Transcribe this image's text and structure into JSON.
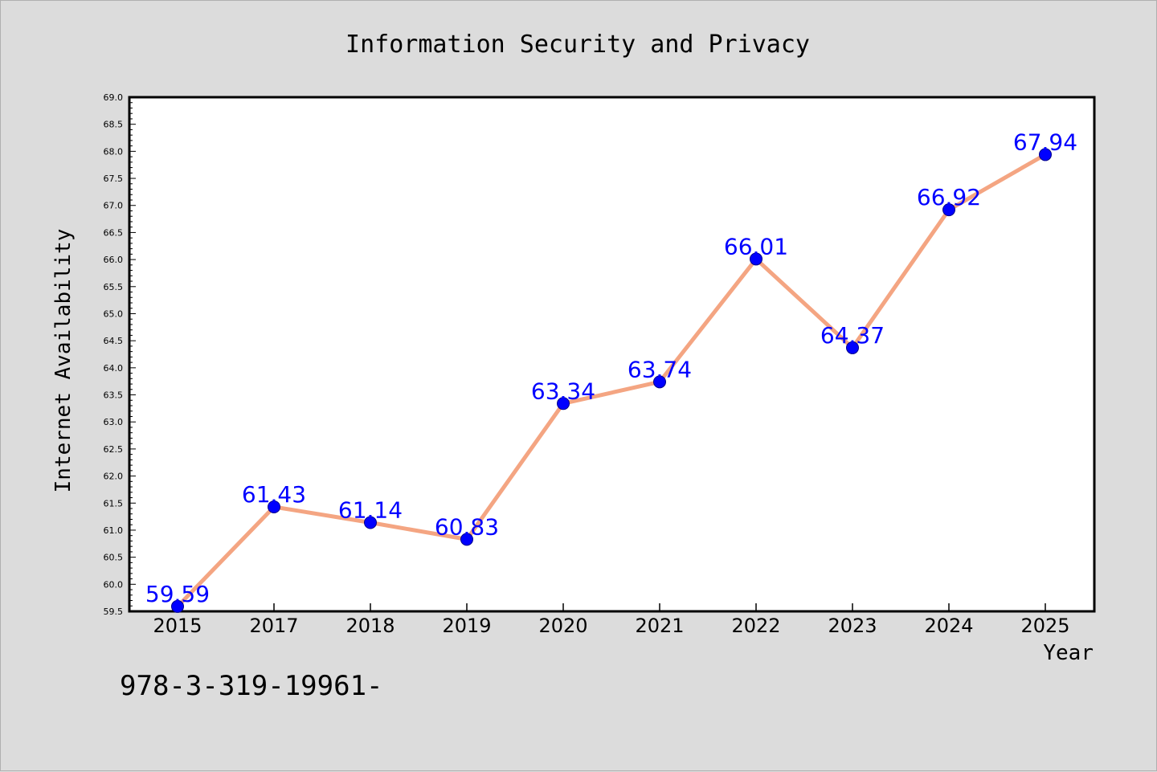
{
  "chart_data": {
    "type": "line",
    "title": "Information Security and Privacy",
    "xlabel": "Year",
    "ylabel": "Internet Availability",
    "categories": [
      "2015",
      "2017",
      "2018",
      "2019",
      "2020",
      "2021",
      "2022",
      "2023",
      "2024",
      "2025"
    ],
    "series": [
      {
        "values": [
          59.59,
          61.43,
          61.14,
          60.83,
          63.34,
          63.74,
          66.01,
          64.37,
          66.92,
          67.94
        ],
        "labels": [
          "59.59",
          "61.43",
          "61.14",
          "60.83",
          "63.34",
          "63.74",
          "66.01",
          "64.37",
          "66.92",
          "67.94"
        ]
      }
    ],
    "ylim": [
      59.5,
      69.0
    ],
    "yticks": [
      "59.5",
      "60.0",
      "60.5",
      "61.0",
      "61.5",
      "62.0",
      "62.5",
      "63.0",
      "63.5",
      "64.0",
      "64.5",
      "65.0",
      "65.5",
      "66.0",
      "66.5",
      "67.0",
      "67.5",
      "68.0",
      "68.5",
      "69.0"
    ],
    "grid": false,
    "colors": {
      "line": "#f4a582",
      "marker": "#0000ff",
      "point_label": "#0000ff",
      "figure_background": "#dcdcdc",
      "plot_background": "#ffffff"
    }
  },
  "footnote": "978-3-319-19961-"
}
